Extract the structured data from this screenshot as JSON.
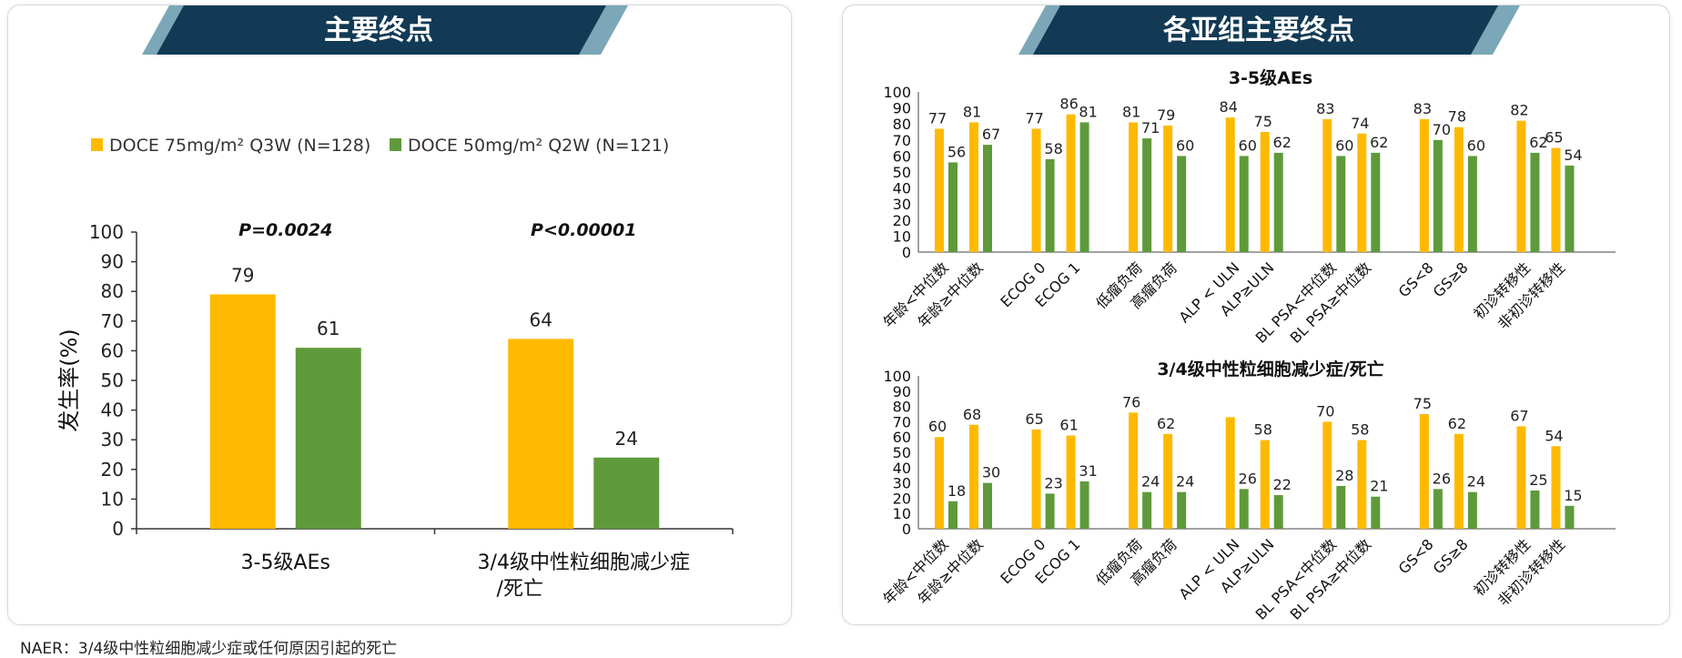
{
  "colors": {
    "bar_primary": "#FFB900",
    "bar_secondary": "#5E9A3A",
    "banner_dark": "#123A55",
    "banner_light": "#7BA7B8",
    "axis": "#333333"
  },
  "left_panel": {
    "banner_title": "主要终点"
  },
  "right_panel": {
    "banner_title": "各亚组主要终点"
  },
  "footnote": "NAER：3/4级中性粒细胞减少症或任何原因引起的死亡",
  "chart_data": [
    {
      "id": "main",
      "type": "bar",
      "categories": [
        "3-5级AEs",
        "3/4级中性粒细胞减少症/死亡"
      ],
      "category_lines": [
        [
          "3-5级AEs"
        ],
        [
          "3/4级中性粒细胞减少症",
          "/死亡"
        ]
      ],
      "series": [
        {
          "name": "DOCE 75mg/m² Q3W (N=128)",
          "values": [
            79,
            64
          ]
        },
        {
          "name": "DOCE 50mg/m² Q2W (N=121)",
          "values": [
            61,
            24
          ]
        }
      ],
      "annotations": [
        "P=0.0024",
        "P<0.00001"
      ],
      "ylabel": "发生率(%)",
      "ylim": [
        0,
        100
      ],
      "yticks": [
        0,
        10,
        20,
        30,
        40,
        50,
        60,
        70,
        80,
        90,
        100
      ],
      "legend": "top-left",
      "grid": false
    },
    {
      "id": "subgroup_aes",
      "type": "bar",
      "title": "3-5级AEs",
      "categories": [
        "年龄<中位数",
        "年龄≥中位数",
        "ECOG 0",
        "ECOG 1",
        "低瘤负荷",
        "高瘤负荷",
        "ALP < ULN",
        "ALP≥ULN",
        "BL PSA<中位数",
        "BL PSA≥中位数",
        "GS<8",
        "GS≥8",
        "初诊转移性",
        "非初诊转移性"
      ],
      "series": [
        {
          "values": [
            77,
            81,
            77,
            86,
            81,
            79,
            84,
            75,
            83,
            74,
            83,
            78,
            82,
            65
          ]
        },
        {
          "values": [
            56,
            67,
            58,
            81,
            71,
            60,
            60,
            62,
            60,
            62,
            70,
            60,
            62,
            54
          ]
        }
      ],
      "ylim": [
        0,
        100
      ],
      "yticks": [
        0,
        10,
        20,
        30,
        40,
        50,
        60,
        70,
        80,
        90,
        100
      ],
      "grid": false
    },
    {
      "id": "subgroup_neut",
      "type": "bar",
      "title": "3/4级中性粒细胞减少症/死亡",
      "categories": [
        "年龄<中位数",
        "年龄≥中位数",
        "ECOG 0",
        "ECOG 1",
        "低瘤负荷",
        "高瘤负荷",
        "ALP < ULN",
        "ALP≥ULN",
        "BL PSA<中位数",
        "BL PSA≥中位数",
        "GS<8",
        "GS≥8",
        "初诊转移性",
        "非初诊转移性"
      ],
      "series": [
        {
          "values": [
            60,
            68,
            65,
            61,
            76,
            62,
            73,
            58,
            70,
            58,
            75,
            62,
            67,
            54
          ]
        },
        {
          "values": [
            18,
            30,
            23,
            31,
            24,
            24,
            26,
            22,
            28,
            21,
            26,
            24,
            25,
            15
          ]
        }
      ],
      "value_labels": [
        [
          "60",
          "68",
          "65",
          "61",
          "76",
          "62",
          "",
          "58",
          "70",
          "58",
          "75",
          "62",
          "67",
          "54"
        ],
        [
          "18",
          "30",
          "23",
          "31",
          "24",
          "24",
          "26",
          "22",
          "28",
          "21",
          "26",
          "24",
          "25",
          "15"
        ]
      ],
      "ylim": [
        0,
        100
      ],
      "yticks": [
        0,
        10,
        20,
        30,
        40,
        50,
        60,
        70,
        80,
        90,
        100
      ],
      "grid": false
    }
  ]
}
